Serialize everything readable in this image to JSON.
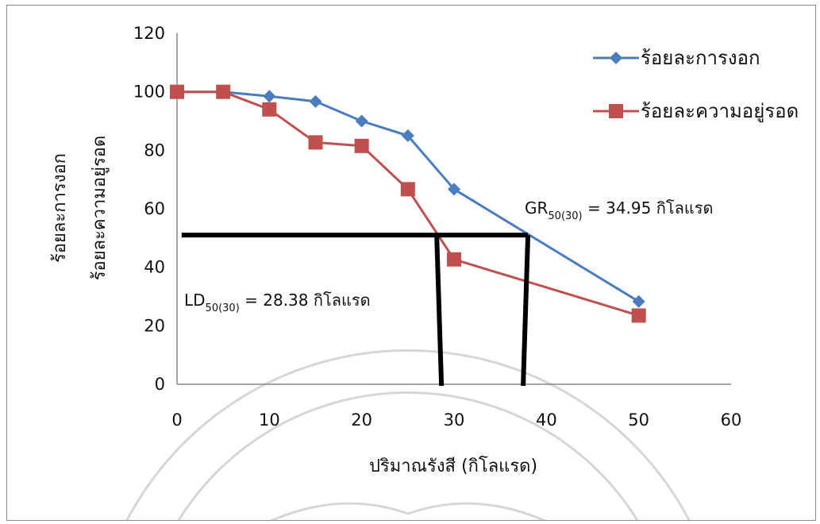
{
  "chart_data": {
    "type": "line",
    "xlabel": "ปริมาณรังสี (กิโลแรด)",
    "ylabel_lines": [
      "ร้อยละการงอก",
      "ร้อยละความอยู่รอด"
    ],
    "xlim": [
      0,
      60
    ],
    "ylim": [
      0,
      120
    ],
    "x_ticks": [
      0,
      10,
      20,
      30,
      40,
      50,
      60
    ],
    "y_ticks": [
      0,
      20,
      40,
      60,
      80,
      100,
      120
    ],
    "grid": false,
    "legend_position": "top-right",
    "series": [
      {
        "name": "ร้อยละการงอก",
        "color": "#4a7dbf",
        "marker": "diamond",
        "points": [
          [
            0,
            100
          ],
          [
            5,
            100
          ],
          [
            10,
            98.5
          ],
          [
            15,
            96.7
          ],
          [
            20,
            90
          ],
          [
            25,
            85
          ],
          [
            30,
            66.7
          ],
          [
            50,
            28.3
          ]
        ]
      },
      {
        "name": "ร้อยละความอยู่รอด",
        "color": "#c0504d",
        "marker": "square",
        "points": [
          [
            0,
            100
          ],
          [
            5,
            100
          ],
          [
            10,
            94
          ],
          [
            15,
            82.7
          ],
          [
            20,
            81.5
          ],
          [
            25,
            66.7
          ],
          [
            30,
            42.7
          ],
          [
            50,
            23.5
          ]
        ]
      }
    ],
    "reference_lines": {
      "color": "#000000",
      "y": 51,
      "x_left": 0.5,
      "x_right": 38,
      "ld_x": 28.38,
      "gr_x": 34.95
    },
    "annotations": [
      {
        "id": "gr",
        "main": "GR",
        "sub": "50(30)",
        "rest": " = 34.95 กิโลแรด",
        "at_x": 42,
        "at_y": 59.5
      },
      {
        "id": "ld",
        "main": "LD",
        "sub": "50(30)",
        "rest": " = 28.38 กิโลแรด",
        "at_x": 1,
        "at_y": 27
      }
    ]
  }
}
